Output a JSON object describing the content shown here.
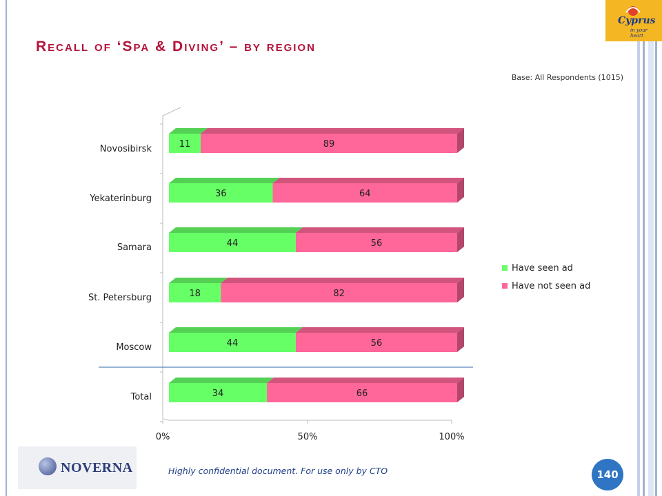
{
  "slide": {
    "title": "Recall of ‘Spa & Diving’ – by region",
    "base_note": "Base: All Respondents (1015)",
    "footer_note": "Highly confidential document. For use only by CTO",
    "page_number": "140",
    "brand_logo_text": "Cyprus",
    "brand_logo_tagline": "in your heart",
    "footer_logo_text": "NOVERNA"
  },
  "colors": {
    "title": "#b3123a",
    "have_seen": "#66ff66",
    "have_not_seen": "#ff6699",
    "badge": "#2f75c4"
  },
  "chart_data": {
    "type": "bar",
    "orientation": "horizontal",
    "stacked": true,
    "percent_stacked": true,
    "style": "3d",
    "categories": [
      "Novosibirsk",
      "Yekaterinburg",
      "Samara",
      "St. Petersburg",
      "Moscow",
      "Total"
    ],
    "series": [
      {
        "name": "Have seen ad",
        "values": [
          11,
          36,
          44,
          18,
          44,
          34
        ],
        "color": "#66ff66"
      },
      {
        "name": "Have not seen ad",
        "values": [
          89,
          64,
          56,
          82,
          56,
          66
        ],
        "color": "#ff6699"
      }
    ],
    "x_ticks": [
      "0%",
      "50%",
      "100%"
    ],
    "xlim": [
      0,
      100
    ],
    "legend_position": "right",
    "grid": false
  }
}
